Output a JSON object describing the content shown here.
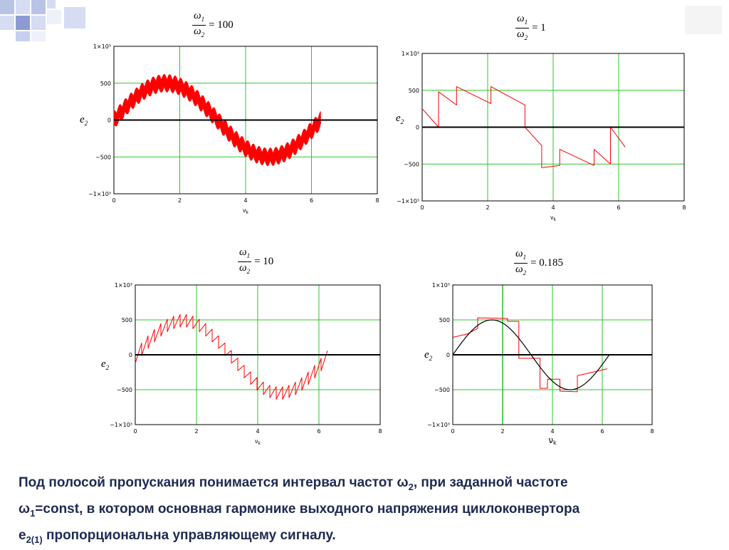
{
  "chart_data": [
    {
      "type": "line",
      "formula": {
        "numerator": "ω",
        "numerator_sub": "1",
        "denominator": "ω",
        "denominator_sub": "2",
        "rhs": "= 100"
      },
      "ylabel": "e",
      "ylabel_sub": "2",
      "xlabel": "ν",
      "xlabel_sub": "k",
      "xlim": [
        0,
        8
      ],
      "ylim": [
        -1000,
        1000
      ],
      "x_ticks": [
        "0",
        "2",
        "4",
        "6",
        "8"
      ],
      "y_ticks": [
        "−1×10³",
        "−500",
        "0",
        "500",
        "1×10³"
      ],
      "grid": true,
      "series": [
        {
          "color": "#ff0000",
          "shape": "sine with dense switching ripple",
          "amplitude": 500,
          "ripple": 120,
          "x": [
            0,
            6.28
          ]
        },
        {
          "color": "#000000",
          "shape": "zero line",
          "x": [
            0,
            8
          ],
          "y": [
            0,
            0
          ]
        }
      ]
    },
    {
      "type": "line",
      "formula": {
        "numerator": "ω",
        "numerator_sub": "1",
        "denominator": "ω",
        "denominator_sub": "2",
        "rhs": "= 1"
      },
      "ylabel": "e",
      "ylabel_sub": "2",
      "xlabel": "ν",
      "xlabel_sub": "k",
      "xlim": [
        0,
        8
      ],
      "ylim": [
        -1000,
        1000
      ],
      "x_ticks": [
        "0",
        "2",
        "4",
        "6",
        "8"
      ],
      "y_ticks": [
        "−1×10³",
        "−500",
        "0",
        "500",
        "1×10³"
      ],
      "grid": true,
      "series": [
        {
          "color": "#ff0000",
          "x": [
            0,
            0.5,
            0.5,
            1.05,
            1.05,
            2.1,
            2.1,
            3.14,
            3.14,
            3.65,
            3.65,
            4.2,
            4.2,
            5.25,
            5.25,
            5.75,
            5.75,
            6.2
          ],
          "y": [
            250,
            0,
            480,
            300,
            550,
            320,
            550,
            300,
            0,
            -250,
            -550,
            -520,
            -300,
            -520,
            -300,
            -500,
            0,
            -270
          ]
        },
        {
          "color": "#000000",
          "shape": "zero line",
          "x": [
            0,
            8
          ],
          "y": [
            0,
            0
          ]
        }
      ]
    },
    {
      "type": "line",
      "formula": {
        "numerator": "ω",
        "numerator_sub": "1",
        "denominator": "ω",
        "denominator_sub": "2",
        "rhs": "= 10"
      },
      "ylabel": "e",
      "ylabel_sub": "2",
      "xlabel": "ν",
      "xlabel_sub": "k",
      "xlim": [
        0,
        8
      ],
      "ylim": [
        -1000,
        1000
      ],
      "x_ticks": [
        "0",
        "2",
        "4",
        "6",
        "8"
      ],
      "y_ticks": [
        "−1×10³",
        "−500",
        "0",
        "500",
        "1×10³"
      ],
      "grid": true,
      "series": [
        {
          "color": "#ff0000",
          "shape": "sine envelope with sawtooth switching",
          "amplitude": 520,
          "teeth": 30,
          "x": [
            0,
            6.28
          ]
        },
        {
          "color": "#000000",
          "shape": "zero line",
          "x": [
            0,
            8
          ],
          "y": [
            0,
            0
          ]
        }
      ]
    },
    {
      "type": "line",
      "formula": {
        "numerator": "ω",
        "numerator_sub": "1",
        "denominator": "ω",
        "denominator_sub": "2",
        "rhs": "= 0.185"
      },
      "ylabel": "e",
      "ylabel_sub": "2",
      "xlabel": "ν",
      "xlabel_sub": "k",
      "xlim": [
        0,
        8
      ],
      "ylim": [
        -1000,
        1000
      ],
      "x_ticks": [
        "0",
        "2",
        "4",
        "6",
        "8"
      ],
      "y_ticks": [
        "−1×10³",
        "−500",
        "0",
        "500",
        "1×10³"
      ],
      "grid": true,
      "series": [
        {
          "color": "#ff0000",
          "x": [
            0,
            0.6,
            1.0,
            1.0,
            2.2,
            2.2,
            2.65,
            2.65,
            3.5,
            3.5,
            3.8,
            3.8,
            4.3,
            4.3,
            5.0,
            5.0,
            6.2
          ],
          "y": [
            250,
            300,
            380,
            530,
            520,
            480,
            480,
            -50,
            -50,
            -480,
            -480,
            -350,
            -350,
            -520,
            -530,
            -300,
            -200
          ]
        },
        {
          "color": "#000000",
          "shape": "sine fundamental",
          "amplitude": 500,
          "x": [
            0,
            6.28
          ]
        },
        {
          "color": "#000000",
          "shape": "zero line",
          "x": [
            0,
            8
          ],
          "y": [
            0,
            0
          ]
        }
      ]
    }
  ],
  "caption": {
    "line1_pre": "Под полосой пропускания понимается интервал частот ω",
    "line1_sub": "2",
    "line1_post": ", при заданной частоте",
    "line2_pre": "ω",
    "line2_sub": "1",
    "line2_post": "=const, в котором  основная гармонике выходного напряжения циклоконвертора",
    "line3_pre": " e",
    "line3_sub": "2(1)",
    "line3_post": " пропорциональна управляющему сигналу."
  }
}
